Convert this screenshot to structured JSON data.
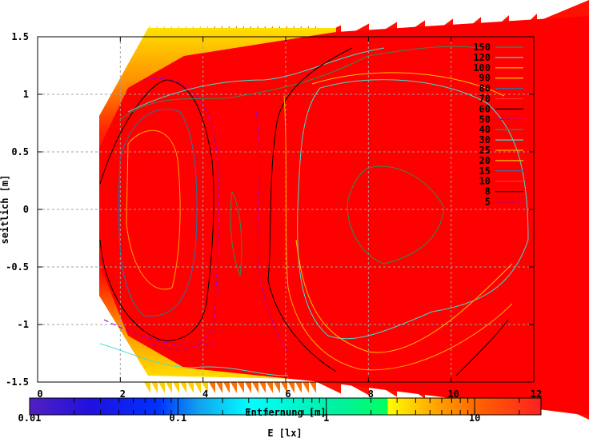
{
  "chart_data": {
    "type": "heatmap",
    "subtype": "contour",
    "xlabel": "Entfernung [m]",
    "ylabel": "seitlich [m]",
    "colorbar_label": "E [lx]",
    "xlim": [
      0,
      12
    ],
    "ylim": [
      -1.5,
      1.5
    ],
    "x_ticks": [
      "0",
      "2",
      "4",
      "6",
      "8",
      "10",
      "12"
    ],
    "x_tick_values": [
      0,
      2,
      4,
      6,
      8,
      10,
      12
    ],
    "y_ticks": [
      "1.5",
      "1",
      "0.5",
      "0",
      "-0.5",
      "-1",
      "-1.5"
    ],
    "y_tick_values": [
      1.5,
      1,
      0.5,
      0,
      -0.5,
      -1,
      -1.5
    ],
    "grid": true,
    "colorbar": {
      "scale": "log",
      "range": [
        0.01,
        28
      ],
      "ticks": [
        "0.01",
        "0.1",
        "1",
        "10"
      ],
      "tick_values": [
        0.01,
        0.1,
        1,
        10
      ]
    },
    "legend_position": "top-right",
    "contour_levels": [
      {
        "label": "150",
        "color": "#2e8b57"
      },
      {
        "label": "120",
        "color": "#40e0d0"
      },
      {
        "label": "100",
        "color": "#ffa500"
      },
      {
        "label": "90",
        "color": "#ffc000"
      },
      {
        "label": "80",
        "color": "#3070a0"
      },
      {
        "label": "70",
        "color": "#ff3030"
      },
      {
        "label": "60",
        "color": "#000000"
      },
      {
        "label": "50",
        "color": "#9400d3"
      },
      {
        "label": "40",
        "color": "#2e8b57"
      },
      {
        "label": "30",
        "color": "#40e0d0"
      },
      {
        "label": "25",
        "color": "#ffa500"
      },
      {
        "label": "20",
        "color": "#ffc000"
      },
      {
        "label": "15",
        "color": "#3070a0"
      },
      {
        "label": "10",
        "color": "#ff3030"
      },
      {
        "label": "8",
        "color": "#000000"
      },
      {
        "label": "5",
        "color": "#9400d3"
      }
    ],
    "surface_color": "#ff0000"
  }
}
